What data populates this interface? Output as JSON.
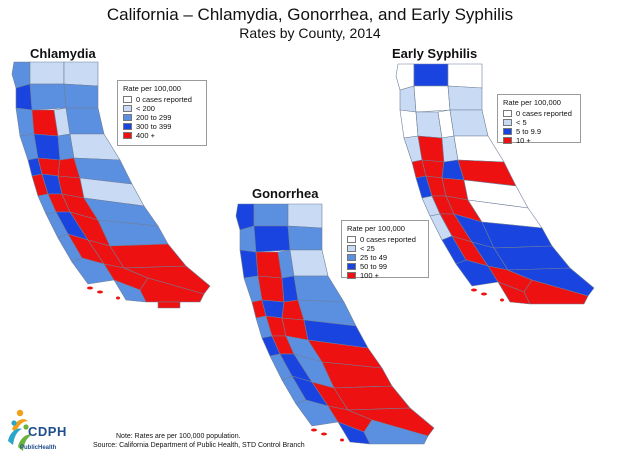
{
  "title": "California – Chlamydia, Gonorrhea, and Early Syphilis",
  "subtitle": "Rates by County, 2014",
  "colors": {
    "none": "#ffffff",
    "low": "#c9daf5",
    "mid": "#5b8fe0",
    "high": "#1a44e0",
    "top": "#ee1111"
  },
  "maps": [
    {
      "name": "Chlamydia",
      "legend": {
        "title": "Rate per 100,000",
        "items": [
          {
            "label": "0 cases reported",
            "color": "#ffffff"
          },
          {
            "label": "< 200",
            "color": "#c9daf5"
          },
          {
            "label": "200 to 299",
            "color": "#5b8fe0"
          },
          {
            "label": "300 to 399",
            "color": "#1a44e0"
          },
          {
            "label": "400 +",
            "color": "#ee1111"
          }
        ]
      }
    },
    {
      "name": "Gonorrhea",
      "legend": {
        "title": "Rate per 100,000",
        "items": [
          {
            "label": "0 cases reported",
            "color": "#ffffff"
          },
          {
            "label": "< 25",
            "color": "#c9daf5"
          },
          {
            "label": "25 to 49",
            "color": "#5b8fe0"
          },
          {
            "label": "50 to 99",
            "color": "#1a44e0"
          },
          {
            "label": "100 +",
            "color": "#ee1111"
          }
        ]
      }
    },
    {
      "name": "Early Syphilis",
      "legend": {
        "title": "Rate per 100,000",
        "items": [
          {
            "label": "0 cases reported",
            "color": "#ffffff"
          },
          {
            "label": "< 5",
            "color": "#c9daf5"
          },
          {
            "label": "5 to 9.9",
            "color": "#1a44e0"
          },
          {
            "label": "10 +",
            "color": "#ee1111"
          }
        ]
      }
    }
  ],
  "note": "Note:  Rates are per 100,000 population.",
  "source": "Source:  California Department of Public Health, STD Control Branch",
  "logo": {
    "abbr": "CDPH",
    "caption": "PublicHealth"
  }
}
